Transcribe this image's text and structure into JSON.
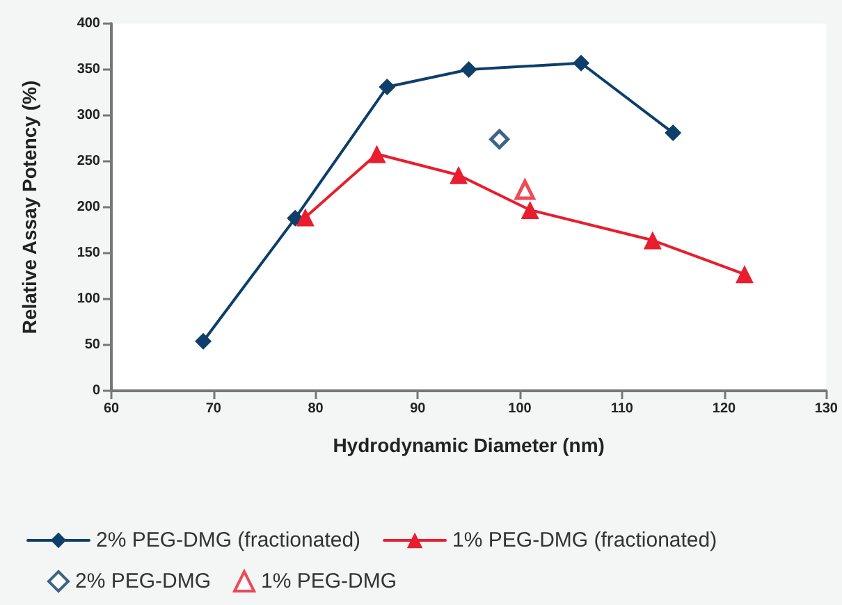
{
  "chart_data": {
    "type": "line",
    "xlabel": "Hydrodynamic Diameter (nm)",
    "ylabel": "Relative Assay Potency (%)",
    "xlim": [
      60,
      130
    ],
    "xticks": [
      60,
      70,
      80,
      90,
      100,
      110,
      120,
      130
    ],
    "ylim": [
      0,
      400
    ],
    "yticks": [
      0,
      50,
      100,
      150,
      200,
      250,
      300,
      350,
      400
    ],
    "grid": false,
    "legend": "bottom",
    "line_style": "solid",
    "series": [
      {
        "name": "2% PEG-DMG (fractionated)",
        "marker": "diamond",
        "color": "#0d3f6a",
        "x": [
          69,
          78,
          87,
          95,
          106,
          115
        ],
        "values": [
          54,
          188,
          331,
          350,
          357,
          281
        ]
      },
      {
        "name": "1% PEG-DMG (fractionated)",
        "marker": "triangle",
        "color": "#e81e2e",
        "x": [
          79,
          86,
          94,
          101,
          113,
          122
        ],
        "values": [
          189,
          258,
          235,
          197,
          164,
          127
        ]
      },
      {
        "name": "2% PEG-DMG",
        "type": "scatter",
        "marker": "diamond",
        "color": "#0d3f6a",
        "x": [
          98
        ],
        "values": [
          274
        ]
      },
      {
        "name": "1% PEG-DMG",
        "type": "scatter",
        "marker": "triangle",
        "color": "#e81e2e",
        "x": [
          100.5
        ],
        "values": [
          219
        ]
      }
    ]
  }
}
